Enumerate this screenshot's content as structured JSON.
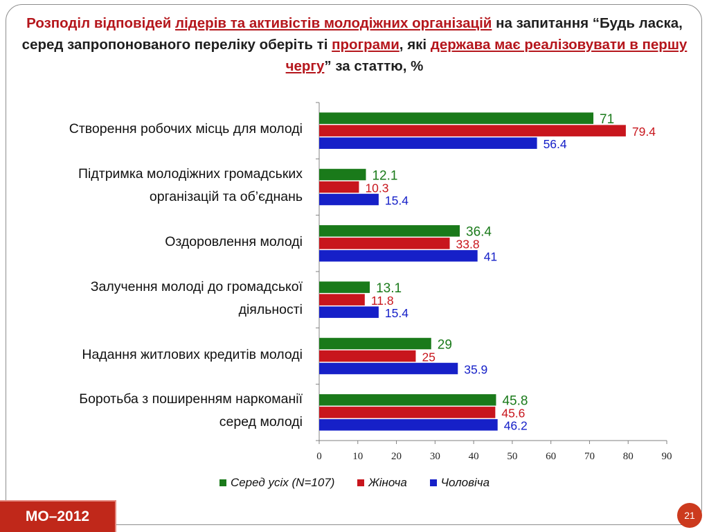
{
  "title": {
    "p1": "Розподіл відповідей ",
    "u1": "лідерів та активістів молодіжних організацій",
    "p2": " на запитання “Будь ласка, серед запропонованого переліку оберіть ті ",
    "u2": "програми",
    "p3": ", які ",
    "u3": "держава має реалізовувати в першу чергу",
    "p4": "” за статтю, %"
  },
  "chart_data": {
    "type": "bar",
    "orientation": "horizontal",
    "categories": [
      "Створення робочих місць для молоді",
      "Підтримка молодіжних громадських організацій та об’єднань",
      "Оздоровлення молоді",
      "Залучення молоді до громадської діяльності",
      "Надання житлових кредитів молоді",
      "Боротьба з поширенням наркоманії серед молоді"
    ],
    "series": [
      {
        "name": "Серед усіх (N=107)",
        "color": "#1a7a1a",
        "values": [
          71,
          12.1,
          36.4,
          13.1,
          29,
          45.8
        ]
      },
      {
        "name": "Жіноча",
        "color": "#c8161d",
        "values": [
          79.4,
          10.3,
          33.8,
          11.8,
          25,
          45.6
        ]
      },
      {
        "name": "Чоловіча",
        "color": "#1620c8",
        "values": [
          56.4,
          15.4,
          41,
          15.4,
          35.9,
          46.2
        ]
      }
    ],
    "value_labels": [
      [
        "71",
        "12.1",
        "36.4",
        "13.1",
        "29",
        "45.8"
      ],
      [
        "79.4",
        "10.3",
        "33.8",
        "11.8",
        "25",
        "45.6"
      ],
      [
        "56.4",
        "15.4",
        "41",
        "15.4",
        "35.9",
        "46.2"
      ]
    ],
    "xlim": [
      0,
      90
    ],
    "xticks": [
      0,
      10,
      20,
      30,
      40,
      50,
      60,
      70,
      80,
      90
    ],
    "grid": false,
    "legend_position": "bottom"
  },
  "category_lines": [
    [
      "Створення робочих місць для молоді"
    ],
    [
      "Підтримка молодіжних громадських",
      "організацій та об’єднань"
    ],
    [
      "Оздоровлення молоді"
    ],
    [
      "Залучення молоді до громадської",
      "діяльності"
    ],
    [
      "Надання житлових кредитів молоді"
    ],
    [
      "Боротьба з поширенням наркоманії",
      "серед молоді"
    ]
  ],
  "footer": {
    "badge": "МО–2012",
    "page": "21"
  }
}
